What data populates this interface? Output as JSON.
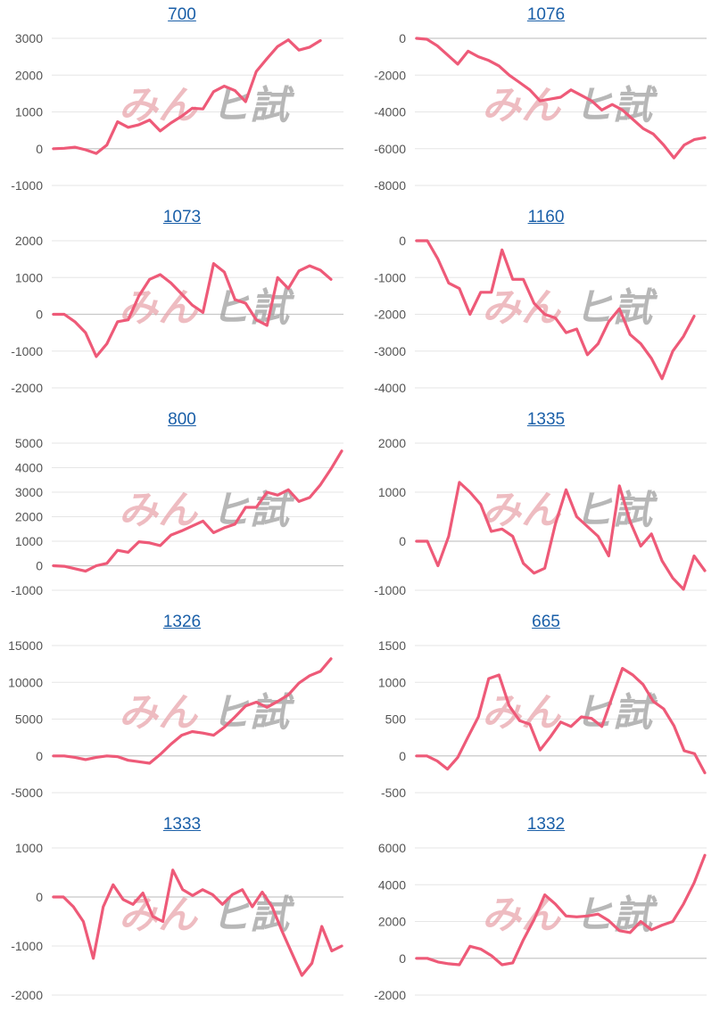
{
  "colors": {
    "line": "#ee5a78",
    "title_link": "#1a5fa8",
    "watermark_pink": "#e8a0a8",
    "watermark_gray": "#9a9a9a"
  },
  "watermark": {
    "left": "みん",
    "right": "ヒ試"
  },
  "chart_data": [
    {
      "type": "line",
      "title": "700",
      "ylim": [
        -1000,
        3000
      ],
      "yticks": [
        -1000,
        0,
        1000,
        2000,
        3000
      ],
      "values": [
        0,
        10,
        40,
        -30,
        -130,
        100,
        730,
        580,
        650,
        780,
        480,
        700,
        880,
        1100,
        1080,
        1550,
        1700,
        1580,
        1280,
        2100,
        2450,
        2780,
        2960,
        2680,
        2760,
        2940
      ]
    },
    {
      "type": "line",
      "title": "1076",
      "ylim": [
        -8000,
        0
      ],
      "yticks": [
        -8000,
        -6000,
        -4000,
        -2000,
        0
      ],
      "values": [
        0,
        -50,
        -400,
        -900,
        -1400,
        -700,
        -1000,
        -1200,
        -1500,
        -2000,
        -2400,
        -2800,
        -3400,
        -3300,
        -3200,
        -2800,
        -3100,
        -3400,
        -3900,
        -3600,
        -3900,
        -4400,
        -4900,
        -5200,
        -5800,
        -6500,
        -5800,
        -5500,
        -5400
      ]
    },
    {
      "type": "line",
      "title": "1073",
      "ylim": [
        -2000,
        2000
      ],
      "yticks": [
        -2000,
        -1000,
        0,
        1000,
        2000
      ],
      "values": [
        0,
        0,
        -200,
        -500,
        -1150,
        -800,
        -200,
        -150,
        500,
        950,
        1080,
        850,
        550,
        250,
        50,
        1380,
        1150,
        400,
        300,
        -150,
        -300,
        1000,
        700,
        1180,
        1320,
        1200,
        950
      ]
    },
    {
      "type": "line",
      "title": "1160",
      "ylim": [
        -4000,
        0
      ],
      "yticks": [
        -4000,
        -3000,
        -2000,
        -1000,
        0
      ],
      "values": [
        0,
        0,
        -500,
        -1150,
        -1300,
        -2000,
        -1400,
        -1400,
        -250,
        -1050,
        -1050,
        -1700,
        -2000,
        -2100,
        -2500,
        -2400,
        -3100,
        -2800,
        -2200,
        -1850,
        -2550,
        -2800,
        -3200,
        -3750,
        -3000,
        -2600,
        -2050
      ]
    },
    {
      "type": "line",
      "title": "800",
      "ylim": [
        -1000,
        5000
      ],
      "yticks": [
        -1000,
        0,
        1000,
        2000,
        3000,
        4000,
        5000
      ],
      "values": [
        0,
        -20,
        -120,
        -220,
        0,
        100,
        630,
        550,
        980,
        930,
        820,
        1250,
        1420,
        1620,
        1820,
        1350,
        1550,
        1700,
        2380,
        2380,
        3000,
        2880,
        3100,
        2620,
        2780,
        3300,
        3950,
        4680
      ]
    },
    {
      "type": "line",
      "title": "1335",
      "ylim": [
        -1000,
        2000
      ],
      "yticks": [
        -1000,
        0,
        1000,
        2000
      ],
      "values": [
        0,
        0,
        -500,
        100,
        1200,
        1000,
        750,
        200,
        250,
        100,
        -450,
        -650,
        -550,
        350,
        1050,
        500,
        300,
        100,
        -300,
        1130,
        400,
        -100,
        150,
        -400,
        -750,
        -980,
        -300,
        -600
      ]
    },
    {
      "type": "line",
      "title": "1326",
      "ylim": [
        -5000,
        15000
      ],
      "yticks": [
        -5000,
        0,
        5000,
        10000,
        15000
      ],
      "values": [
        0,
        0,
        -200,
        -500,
        -200,
        0,
        -100,
        -600,
        -800,
        -1000,
        200,
        1600,
        2800,
        3300,
        3100,
        2800,
        3900,
        5300,
        6800,
        7300,
        6600,
        7400,
        8300,
        9900,
        10900,
        11500,
        13200
      ]
    },
    {
      "type": "line",
      "title": "665",
      "ylim": [
        -500,
        1500
      ],
      "yticks": [
        -500,
        0,
        500,
        1000,
        1500
      ],
      "values": [
        0,
        0,
        -70,
        -180,
        -20,
        260,
        530,
        1050,
        1100,
        680,
        480,
        430,
        80,
        260,
        460,
        400,
        530,
        510,
        400,
        800,
        1190,
        1100,
        970,
        740,
        640,
        410,
        70,
        30,
        -230
      ]
    },
    {
      "type": "line",
      "title": "1333",
      "ylim": [
        -2000,
        1000
      ],
      "yticks": [
        -2000,
        -1000,
        0,
        1000
      ],
      "values": [
        0,
        0,
        -200,
        -500,
        -1250,
        -200,
        250,
        -50,
        -150,
        80,
        -400,
        -500,
        550,
        150,
        30,
        150,
        50,
        -150,
        50,
        150,
        -200,
        100,
        -200,
        -700,
        -1150,
        -1600,
        -1350,
        -600,
        -1100,
        -1000
      ]
    },
    {
      "type": "line",
      "title": "1332",
      "ylim": [
        -2000,
        6000
      ],
      "yticks": [
        -2000,
        0,
        2000,
        4000,
        6000
      ],
      "values": [
        0,
        0,
        -200,
        -300,
        -350,
        650,
        500,
        150,
        -350,
        -250,
        1000,
        2100,
        3450,
        2950,
        2300,
        2250,
        2300,
        2400,
        2050,
        1500,
        1400,
        2000,
        1550,
        1800,
        2000,
        2950,
        4100,
        5600
      ]
    }
  ]
}
